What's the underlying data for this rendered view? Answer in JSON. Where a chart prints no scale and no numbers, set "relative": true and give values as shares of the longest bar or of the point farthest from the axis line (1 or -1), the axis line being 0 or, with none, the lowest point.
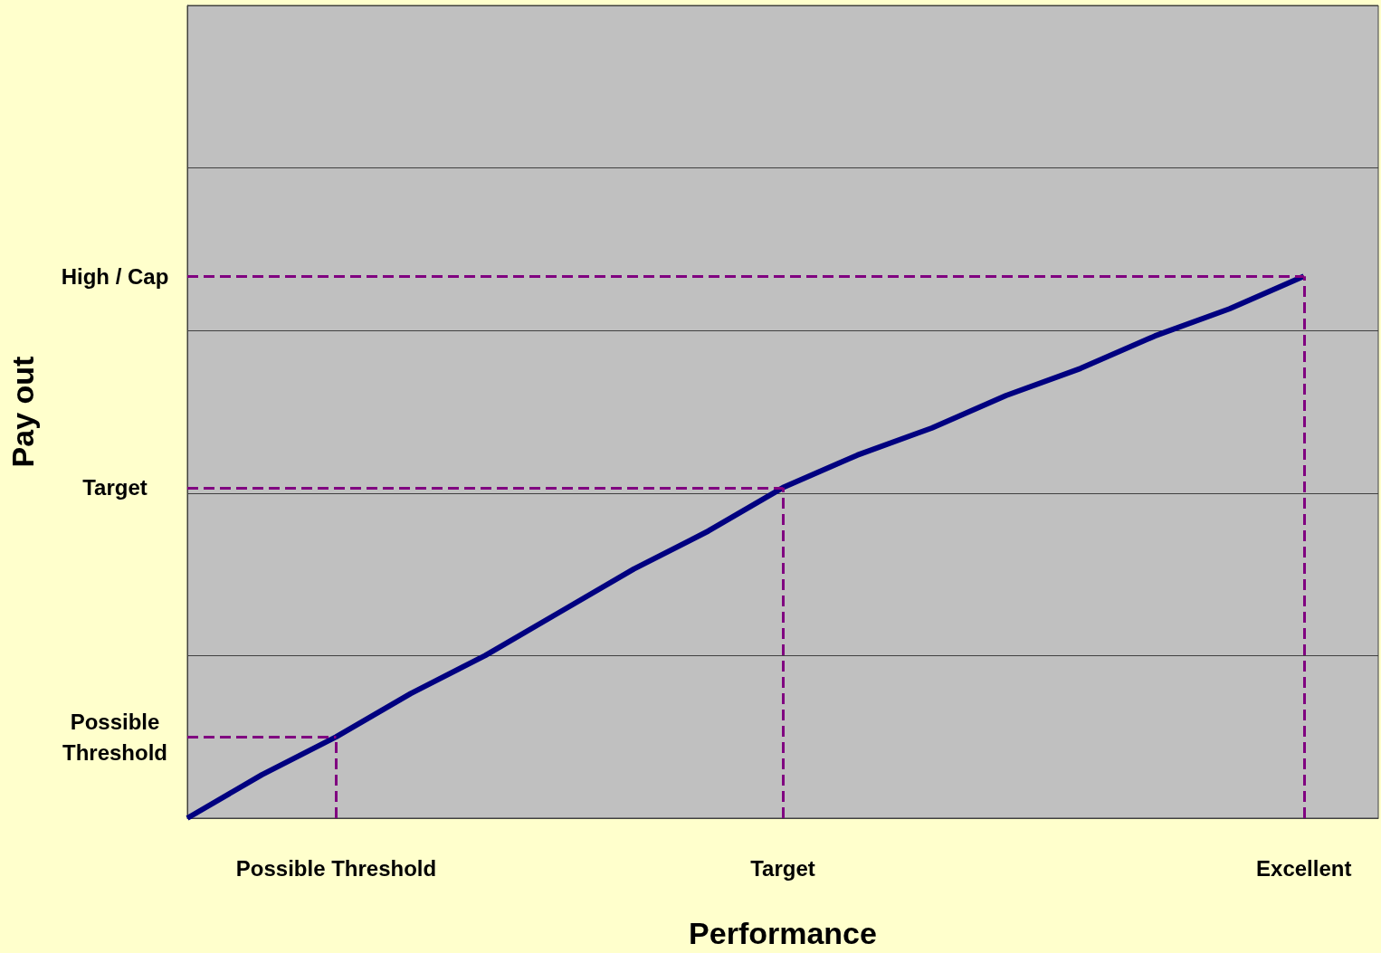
{
  "chart_data": {
    "type": "line",
    "relative": true,
    "xlabel": "Performance",
    "ylabel": "Pay out",
    "categories": [
      null,
      null,
      "Possible Threshold",
      null,
      null,
      null,
      null,
      null,
      "Target",
      null,
      null,
      null,
      null,
      null,
      null,
      "Excellent",
      null
    ],
    "series": [
      {
        "color": "#000080",
        "values": [
          0,
          0.08,
          0.15,
          0.23,
          0.3,
          0.38,
          0.46,
          0.53,
          0.61,
          0.67,
          0.72,
          0.78,
          0.83,
          0.89,
          0.94,
          1,
          null
        ]
      }
    ],
    "ref_lines": [
      {
        "axis": "y",
        "value": 0.15,
        "label": "Possible\nThreshold",
        "color": "#800080",
        "line_style": "dashed"
      },
      {
        "axis": "y",
        "value": 0.61,
        "label": "Target",
        "color": "#800080",
        "line_style": "dashed"
      },
      {
        "axis": "y",
        "value": 1,
        "label": "High / Cap",
        "color": "#800080",
        "line_style": "dashed"
      },
      {
        "axis": "x",
        "value": "Possible Threshold",
        "color": "#800080",
        "line_style": "dashed"
      },
      {
        "axis": "x",
        "value": "Target",
        "color": "#800080",
        "line_style": "dashed"
      },
      {
        "axis": "x",
        "value": "Excellent",
        "color": "#800080",
        "line_style": "dashed"
      }
    ],
    "grid": "y",
    "marker": "none",
    "line_style": "solid"
  }
}
